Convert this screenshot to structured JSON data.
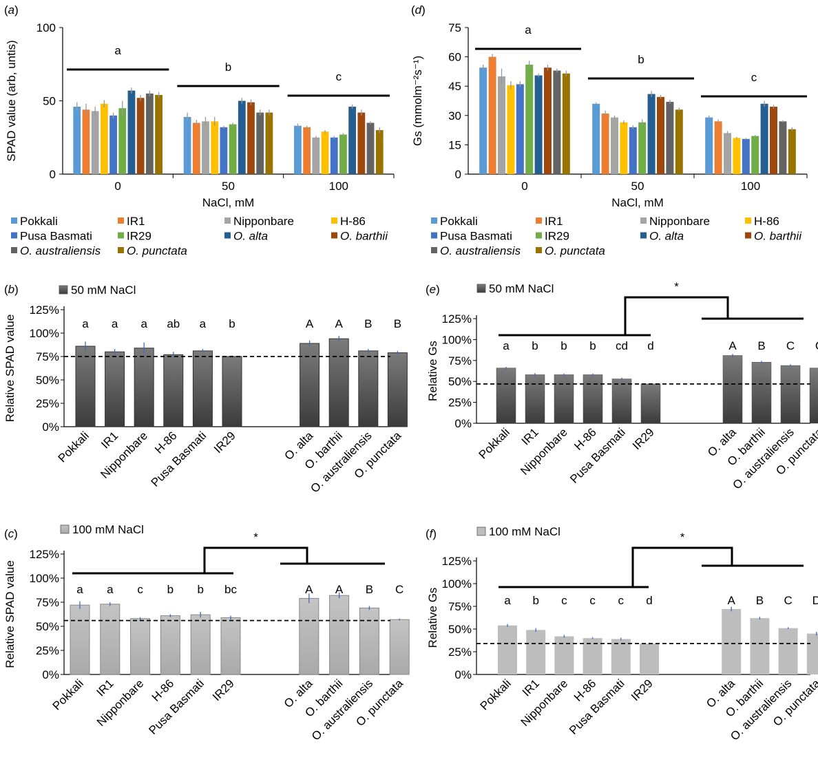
{
  "genotypes": [
    "Pokkali",
    "IR1",
    "Nipponbare",
    "H-86",
    "Pusa Basmati",
    "IR29",
    "O. alta",
    "O. barthii",
    "O. australiensis",
    "O. punctata"
  ],
  "genotype_colors": [
    "#5B9BD5",
    "#ED7D31",
    "#A5A5A5",
    "#FFC000",
    "#4472C4",
    "#70AD47",
    "#255E91",
    "#9E480E",
    "#636363",
    "#997300"
  ],
  "chart_data": [
    {
      "panel": "a",
      "type": "bar",
      "panel_label": "(a)",
      "ylabel": "SPAD value (arb, untis)",
      "xlabel": "NaCl, mM",
      "categories": [
        "0",
        "50",
        "100"
      ],
      "ylim": [
        0,
        100
      ],
      "yticks": [
        "0",
        "50",
        "100"
      ],
      "group_letters": [
        "a",
        "b",
        "c"
      ],
      "series": [
        {
          "name": "Pokkali",
          "values": [
            46,
            39,
            33
          ],
          "errors": [
            3,
            3,
            1.5
          ]
        },
        {
          "name": "IR1",
          "values": [
            44,
            35,
            32
          ],
          "errors": [
            4,
            2,
            1
          ]
        },
        {
          "name": "Nipponbare",
          "values": [
            43,
            36,
            25
          ],
          "errors": [
            3,
            3,
            1
          ]
        },
        {
          "name": "H-86",
          "values": [
            48,
            36,
            29
          ],
          "errors": [
            2.5,
            3,
            1
          ]
        },
        {
          "name": "Pusa Basmati",
          "values": [
            40,
            32,
            25
          ],
          "errors": [
            2,
            1,
            1
          ]
        },
        {
          "name": "IR29",
          "values": [
            45,
            34,
            27
          ],
          "errors": [
            5,
            1,
            1
          ]
        },
        {
          "name": "O. alta",
          "values": [
            57,
            50,
            46
          ],
          "errors": [
            2,
            2,
            1.5
          ]
        },
        {
          "name": "O. barthii",
          "values": [
            52,
            49,
            42
          ],
          "errors": [
            2,
            2,
            2
          ]
        },
        {
          "name": "O. australiensis",
          "values": [
            55,
            42,
            35
          ],
          "errors": [
            2,
            2,
            1
          ]
        },
        {
          "name": "O. punctata",
          "values": [
            54,
            42,
            30
          ],
          "errors": [
            2,
            2,
            2
          ]
        }
      ]
    },
    {
      "panel": "d",
      "type": "bar",
      "panel_label": "(d)",
      "ylabel": "Gs (mmolm⁻²s⁻¹)",
      "xlabel": "NaCl, mM",
      "categories": [
        "0",
        "50",
        "100"
      ],
      "ylim": [
        0,
        75
      ],
      "yticks": [
        "0",
        "15",
        "30",
        "45",
        "60",
        "75"
      ],
      "group_letters": [
        "a",
        "b",
        "c"
      ],
      "series": [
        {
          "name": "Pokkali",
          "values": [
            54.5,
            36,
            29
          ],
          "errors": [
            1.5,
            0.8,
            1
          ]
        },
        {
          "name": "IR1",
          "values": [
            60,
            31,
            27
          ],
          "errors": [
            1.5,
            1.5,
            1
          ]
        },
        {
          "name": "Nipponbare",
          "values": [
            50,
            29,
            21
          ],
          "errors": [
            4,
            1,
            1
          ]
        },
        {
          "name": "H-86",
          "values": [
            45.5,
            26.5,
            18.5
          ],
          "errors": [
            2,
            1,
            0.5
          ]
        },
        {
          "name": "Pusa Basmati",
          "values": [
            46,
            24,
            18
          ],
          "errors": [
            1.5,
            1,
            0.5
          ]
        },
        {
          "name": "IR29",
          "values": [
            56,
            26.5,
            19.5
          ],
          "errors": [
            2,
            1.5,
            0.5
          ]
        },
        {
          "name": "O. alta",
          "values": [
            50.5,
            41,
            36
          ],
          "errors": [
            1,
            1.5,
            1.5
          ]
        },
        {
          "name": "O. barthii",
          "values": [
            54.5,
            39.5,
            34.5
          ],
          "errors": [
            1.5,
            1,
            1
          ]
        },
        {
          "name": "O. australiensis",
          "values": [
            53,
            37,
            27
          ],
          "errors": [
            1,
            1,
            0.5
          ]
        },
        {
          "name": "O. punctata",
          "values": [
            51.5,
            33,
            23
          ],
          "errors": [
            1.5,
            1,
            1
          ]
        }
      ]
    },
    {
      "panel": "b",
      "type": "bar",
      "panel_label": "(b)",
      "legend": "50 mM NaCl",
      "ylabel": "Relative SPAD value",
      "ylim": [
        0,
        125
      ],
      "yticks": [
        "0%",
        "25%",
        "50%",
        "75%",
        "100%",
        "125%"
      ],
      "baseline_percent": 75,
      "values": [
        86,
        80,
        84,
        77,
        81,
        75,
        89,
        94,
        81,
        79
      ],
      "errors": [
        5,
        3,
        6,
        3,
        2,
        1,
        3,
        3,
        2,
        2
      ],
      "letters": [
        "a",
        "a",
        "a",
        "ab",
        "a",
        "b",
        "A",
        "A",
        "B",
        "B"
      ],
      "significance": ""
    },
    {
      "panel": "e",
      "type": "bar",
      "panel_label": "(e)",
      "legend": "50 mM NaCl",
      "ylabel": "Relative Gs",
      "ylim": [
        0,
        125
      ],
      "yticks": [
        "0%",
        "25%",
        "50%",
        "75%",
        "100%",
        "125%"
      ],
      "baseline_percent": 47,
      "values": [
        66,
        58,
        58,
        58,
        53,
        47,
        81,
        73,
        69,
        66
      ],
      "errors": [
        1.5,
        2,
        1.5,
        1.5,
        1.5,
        1,
        2,
        1.5,
        1.5,
        1
      ],
      "letters": [
        "a",
        "b",
        "b",
        "b",
        "cd",
        "d",
        "A",
        "B",
        "C",
        "C"
      ],
      "significance": "*"
    },
    {
      "panel": "c",
      "type": "bar",
      "panel_label": "(c)",
      "legend": "100 mM NaCl",
      "ylabel": "Relative SPAD value",
      "ylim": [
        0,
        125
      ],
      "yticks": [
        "0%",
        "25%",
        "50%",
        "75%",
        "100%",
        "125%"
      ],
      "baseline_percent": 56,
      "values": [
        72,
        73,
        58,
        61,
        62,
        59,
        79,
        82,
        69,
        57
      ],
      "errors": [
        4,
        2,
        1.5,
        1.5,
        3,
        2,
        5,
        3,
        2,
        1
      ],
      "letters": [
        "a",
        "a",
        "c",
        "b",
        "b",
        "bc",
        "A",
        "A",
        "B",
        "C"
      ],
      "significance": "*"
    },
    {
      "panel": "f",
      "type": "bar",
      "panel_label": "(f)",
      "legend": "100 mM NaCl",
      "ylabel": "Relative Gs",
      "ylim": [
        0,
        125
      ],
      "yticks": [
        "0%",
        "25%",
        "50%",
        "75%",
        "100%",
        "125%"
      ],
      "baseline_percent": 34,
      "values": [
        54,
        49,
        42,
        40,
        39,
        34,
        72,
        62,
        51,
        45
      ],
      "errors": [
        1.5,
        2,
        1.5,
        1,
        1.5,
        1,
        2.5,
        1.5,
        1,
        2
      ],
      "letters": [
        "a",
        "b",
        "c",
        "c",
        "c",
        "d",
        "A",
        "B",
        "C",
        "D"
      ],
      "significance": "*"
    }
  ]
}
